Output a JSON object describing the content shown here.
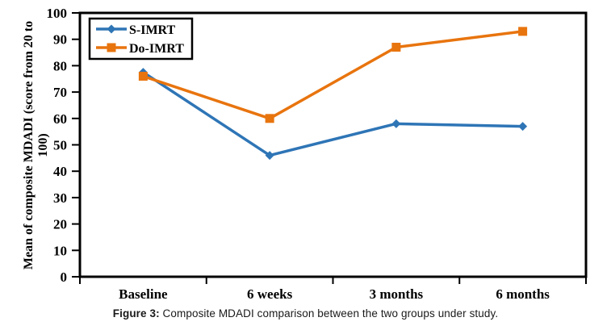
{
  "figure": {
    "caption_prefix": "Figure 3:",
    "caption_text": "Composite MDADI comparison between the two groups under study."
  },
  "chart_data": {
    "type": "line",
    "title": "",
    "categories": [
      "Baseline",
      "6 weeks",
      "3 months",
      "6 months"
    ],
    "series": [
      {
        "name": "S-IMRT",
        "marker": "diamond",
        "color": "#2E75B6",
        "values": [
          77.5,
          46,
          58,
          57
        ]
      },
      {
        "name": "Do-IMRT",
        "marker": "square",
        "color": "#E8740E",
        "values": [
          76,
          60,
          87,
          93
        ]
      }
    ],
    "xlabel": "",
    "ylabel": "Mean of composite MDADI (score from 20 to 100)",
    "ylabel_lines": [
      "Mean of composite MDADI (score from 20 to",
      "100)"
    ],
    "ylim": [
      0,
      100
    ],
    "yticks": [
      0,
      10,
      20,
      30,
      40,
      50,
      60,
      70,
      80,
      90,
      100
    ],
    "grid": false,
    "legend": {
      "position": "top-left",
      "entries": [
        "S-IMRT",
        "Do-IMRT"
      ]
    },
    "axis_color": "#000000",
    "text_color": "#000000"
  }
}
